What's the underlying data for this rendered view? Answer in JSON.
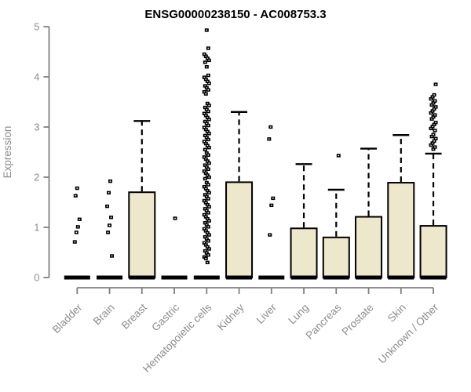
{
  "colors": {
    "background": "#ffffff",
    "axis_line": "#7f7f7f",
    "axis_text": "#8c8c8c",
    "title_text": "#000000",
    "box_fill": "#EDE7CC",
    "box_border": "#000000",
    "median": "#000000",
    "outlier": "#000000"
  },
  "chart_data": {
    "type": "boxplot",
    "title": "ENSG00000238150 - AC008753.3",
    "xlabel": "",
    "ylabel": "Expression",
    "ylim": [
      0,
      5
    ],
    "yticks": [
      0,
      1,
      2,
      3,
      4,
      5
    ],
    "grid": false,
    "legend": "none",
    "box_fill": "#EDE7CC",
    "categories": [
      "Bladder",
      "Brain",
      "Breast",
      "Gastric",
      "Hematopoietic cells",
      "Kidney",
      "Liver",
      "Lung",
      "Pancreas",
      "Prostate",
      "Skin",
      "Unknown / Other"
    ],
    "series": [
      {
        "label": "Bladder",
        "whisker_low": 0,
        "q1": 0,
        "median": 0,
        "q3": 0,
        "whisker_high": 0,
        "outliers": [
          0.71,
          0.9,
          1.01,
          1.16,
          1.63,
          1.78
        ]
      },
      {
        "label": "Brain",
        "whisker_low": 0,
        "q1": 0,
        "median": 0,
        "q3": 0,
        "whisker_high": 0,
        "outliers": [
          0.43,
          0.9,
          1.04,
          1.2,
          1.42,
          1.69,
          1.92
        ]
      },
      {
        "label": "Breast",
        "whisker_low": 0,
        "q1": 0,
        "median": 0,
        "q3": 1.7,
        "whisker_high": 3.12,
        "outliers": []
      },
      {
        "label": "Gastric",
        "whisker_low": 0,
        "q1": 0,
        "median": 0,
        "q3": 0,
        "whisker_high": 0,
        "outliers": [
          1.18
        ]
      },
      {
        "label": "Hematopoietic cells",
        "whisker_low": 0,
        "q1": 0,
        "median": 0,
        "q3": 0,
        "whisker_high": 0,
        "outliers": [
          4.93,
          4.57,
          4.45,
          4.41,
          4.37,
          4.33,
          4.29,
          4.2,
          4.03,
          3.99,
          3.95,
          3.91,
          3.87,
          3.82,
          3.78,
          3.74,
          3.7,
          3.66,
          3.47,
          3.43,
          3.39,
          3.35,
          3.31,
          3.27,
          3.23,
          3.19,
          3.15,
          3.11,
          3.07,
          3.03,
          2.99,
          2.95,
          2.91,
          2.87,
          2.83,
          2.79,
          2.75,
          2.71,
          2.67,
          2.63,
          2.59,
          2.55,
          2.48,
          2.44,
          2.4,
          2.36,
          2.32,
          2.28,
          2.24,
          2.2,
          2.16,
          2.12,
          2.08,
          2.04,
          2.0,
          1.97,
          1.89,
          1.85,
          1.81,
          1.77,
          1.73,
          1.69,
          1.65,
          1.61,
          1.57,
          1.53,
          1.49,
          1.45,
          1.41,
          1.37,
          1.33,
          1.29,
          1.25,
          1.21,
          1.17,
          1.13,
          1.09,
          1.05,
          1.01,
          0.97,
          0.93,
          0.89,
          0.85,
          0.81,
          0.77,
          0.73,
          0.69,
          0.65,
          0.61,
          0.57,
          0.53,
          0.49,
          0.45,
          0.41,
          0.38,
          0.3
        ]
      },
      {
        "label": "Kidney",
        "whisker_low": 0,
        "q1": 0,
        "median": 0,
        "q3": 1.9,
        "whisker_high": 3.3,
        "outliers": []
      },
      {
        "label": "Liver",
        "whisker_low": 0,
        "q1": 0,
        "median": 0,
        "q3": 0,
        "whisker_high": 0,
        "outliers": [
          0.85,
          1.44,
          1.58,
          2.76,
          3.0
        ]
      },
      {
        "label": "Lung",
        "whisker_low": 0,
        "q1": 0,
        "median": 0,
        "q3": 0.98,
        "whisker_high": 2.26,
        "outliers": []
      },
      {
        "label": "Pancreas",
        "whisker_low": 0,
        "q1": 0,
        "median": 0,
        "q3": 0.8,
        "whisker_high": 1.75,
        "outliers": [
          2.43
        ]
      },
      {
        "label": "Prostate",
        "whisker_low": 0,
        "q1": 0,
        "median": 0,
        "q3": 1.21,
        "whisker_high": 2.57,
        "outliers": []
      },
      {
        "label": "Skin",
        "whisker_low": 0,
        "q1": 0,
        "median": 0,
        "q3": 1.89,
        "whisker_high": 2.84,
        "outliers": []
      },
      {
        "label": "Unknown / Other",
        "whisker_low": 0,
        "q1": 0,
        "median": 0,
        "q3": 1.03,
        "whisker_high": 2.47,
        "outliers": [
          2.56,
          2.6,
          2.64,
          2.68,
          2.72,
          2.77,
          2.81,
          2.85,
          2.93,
          2.97,
          3.01,
          3.05,
          3.09,
          3.16,
          3.2,
          3.24,
          3.28,
          3.32,
          3.36,
          3.4,
          3.44,
          3.48,
          3.52,
          3.56,
          3.6,
          3.64,
          3.85
        ]
      }
    ]
  }
}
